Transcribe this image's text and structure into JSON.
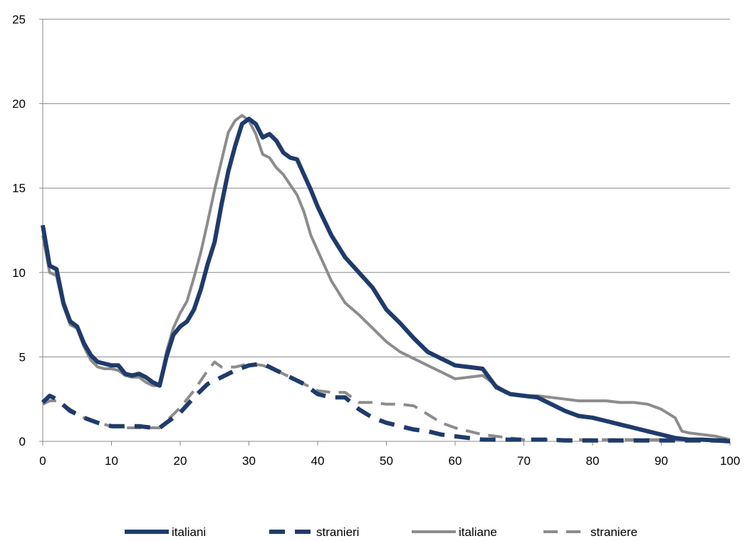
{
  "chart_data": {
    "type": "line",
    "title": "",
    "xlabel": "",
    "ylabel": "",
    "xlim": [
      0,
      100
    ],
    "ylim": [
      0,
      25
    ],
    "xticks": [
      0,
      10,
      20,
      30,
      40,
      50,
      60,
      70,
      80,
      90,
      100
    ],
    "yticks": [
      0,
      5,
      10,
      15,
      20,
      25
    ],
    "grid": "horizontal",
    "legend_position": "bottom",
    "series": [
      {
        "name": "italiani",
        "color": "#1f3b6b",
        "style": "solid-thick",
        "x": [
          0,
          1,
          2,
          3,
          4,
          5,
          6,
          7,
          8,
          9,
          10,
          11,
          12,
          13,
          14,
          15,
          16,
          17,
          18,
          19,
          20,
          21,
          22,
          23,
          24,
          25,
          26,
          27,
          28,
          29,
          30,
          31,
          32,
          33,
          34,
          35,
          36,
          37,
          38,
          39,
          40,
          42,
          44,
          46,
          48,
          50,
          52,
          54,
          56,
          58,
          60,
          62,
          64,
          66,
          68,
          70,
          72,
          74,
          76,
          78,
          80,
          82,
          84,
          86,
          88,
          90,
          92,
          94,
          96,
          98,
          100
        ],
        "y": [
          12.8,
          10.4,
          10.2,
          8.2,
          7.1,
          6.8,
          5.8,
          5.1,
          4.7,
          4.6,
          4.5,
          4.5,
          4.0,
          3.9,
          4.0,
          3.8,
          3.5,
          3.3,
          5.0,
          6.3,
          6.8,
          7.1,
          7.8,
          9.0,
          10.5,
          11.8,
          14.0,
          16.0,
          17.5,
          18.8,
          19.1,
          18.8,
          18.0,
          18.2,
          17.8,
          17.1,
          16.8,
          16.7,
          15.8,
          14.9,
          13.9,
          12.2,
          10.9,
          10.0,
          9.1,
          7.8,
          7.0,
          6.1,
          5.3,
          4.9,
          4.5,
          4.4,
          4.3,
          3.2,
          2.8,
          2.7,
          2.6,
          2.2,
          1.8,
          1.5,
          1.4,
          1.2,
          1.0,
          0.8,
          0.6,
          0.4,
          0.2,
          0.1,
          0.1,
          0.05,
          0.0
        ]
      },
      {
        "name": "stranieri",
        "color": "#1f3b6b",
        "style": "dashed-thick",
        "x": [
          0,
          1,
          2,
          4,
          6,
          8,
          10,
          12,
          14,
          16,
          17,
          18,
          20,
          22,
          24,
          26,
          28,
          30,
          32,
          34,
          36,
          38,
          40,
          42,
          44,
          46,
          48,
          50,
          52,
          54,
          56,
          58,
          60,
          62,
          64,
          66,
          68,
          70,
          72,
          74,
          76,
          78,
          80,
          82,
          84,
          86,
          88,
          90,
          92,
          94,
          96,
          98,
          100
        ],
        "y": [
          2.3,
          2.7,
          2.5,
          1.8,
          1.4,
          1.1,
          0.9,
          0.9,
          0.9,
          0.8,
          0.8,
          1.1,
          1.7,
          2.6,
          3.4,
          3.8,
          4.2,
          4.5,
          4.6,
          4.2,
          3.8,
          3.4,
          2.8,
          2.6,
          2.6,
          1.9,
          1.4,
          1.1,
          0.9,
          0.7,
          0.6,
          0.4,
          0.3,
          0.2,
          0.1,
          0.1,
          0.1,
          0.1,
          0.1,
          0.1,
          0.05,
          0.05,
          0.05,
          0.05,
          0.05,
          0.05,
          0.05,
          0.05,
          0.05,
          0.05,
          0.05,
          0.05,
          0.05
        ]
      },
      {
        "name": "italiane",
        "color": "#8c8c8c",
        "style": "solid",
        "x": [
          0,
          1,
          2,
          3,
          4,
          5,
          6,
          7,
          8,
          9,
          10,
          11,
          12,
          13,
          14,
          15,
          16,
          17,
          18,
          19,
          20,
          21,
          22,
          23,
          24,
          25,
          26,
          27,
          28,
          29,
          30,
          31,
          32,
          33,
          34,
          35,
          36,
          37,
          38,
          39,
          40,
          42,
          44,
          46,
          48,
          50,
          52,
          54,
          56,
          58,
          60,
          62,
          64,
          66,
          68,
          70,
          72,
          74,
          76,
          78,
          80,
          82,
          84,
          86,
          88,
          90,
          92,
          93,
          94,
          96,
          98,
          100
        ],
        "y": [
          12.2,
          10.0,
          9.8,
          8.0,
          6.9,
          6.7,
          5.6,
          4.8,
          4.4,
          4.3,
          4.3,
          4.2,
          3.9,
          3.8,
          3.8,
          3.5,
          3.3,
          3.3,
          5.3,
          6.7,
          7.6,
          8.3,
          9.7,
          11.2,
          13.0,
          14.9,
          16.6,
          18.3,
          19.0,
          19.3,
          19.0,
          18.2,
          17.0,
          16.8,
          16.2,
          15.8,
          15.2,
          14.6,
          13.6,
          12.2,
          11.3,
          9.5,
          8.2,
          7.5,
          6.7,
          5.9,
          5.3,
          4.9,
          4.5,
          4.1,
          3.7,
          3.8,
          3.9,
          3.3,
          2.8,
          2.7,
          2.7,
          2.6,
          2.5,
          2.4,
          2.4,
          2.4,
          2.3,
          2.3,
          2.2,
          1.9,
          1.4,
          0.6,
          0.5,
          0.4,
          0.3,
          0.1
        ]
      },
      {
        "name": "straniere",
        "color": "#8c8c8c",
        "style": "dashed",
        "x": [
          0,
          1,
          2,
          4,
          6,
          8,
          10,
          12,
          14,
          16,
          17,
          18,
          20,
          22,
          24,
          25,
          26,
          28,
          30,
          32,
          34,
          36,
          38,
          40,
          42,
          44,
          46,
          48,
          50,
          52,
          54,
          56,
          58,
          60,
          62,
          64,
          66,
          68,
          70,
          72,
          74,
          76,
          78,
          80,
          82,
          84,
          86,
          88,
          90,
          92,
          94,
          96,
          98,
          100
        ],
        "y": [
          2.2,
          2.4,
          2.4,
          1.9,
          1.4,
          1.1,
          0.9,
          0.8,
          0.8,
          0.8,
          0.8,
          1.2,
          2.0,
          3.0,
          4.2,
          4.7,
          4.4,
          4.4,
          4.6,
          4.5,
          4.2,
          3.8,
          3.4,
          3.0,
          2.9,
          2.9,
          2.3,
          2.3,
          2.2,
          2.2,
          2.1,
          1.6,
          1.1,
          0.8,
          0.6,
          0.4,
          0.3,
          0.2,
          0.1,
          0.1,
          0.1,
          0.1,
          0.1,
          0.1,
          0.1,
          0.1,
          0.1,
          0.1,
          0.1,
          0.1,
          0.1,
          0.1,
          0.1,
          0.1
        ]
      }
    ]
  }
}
